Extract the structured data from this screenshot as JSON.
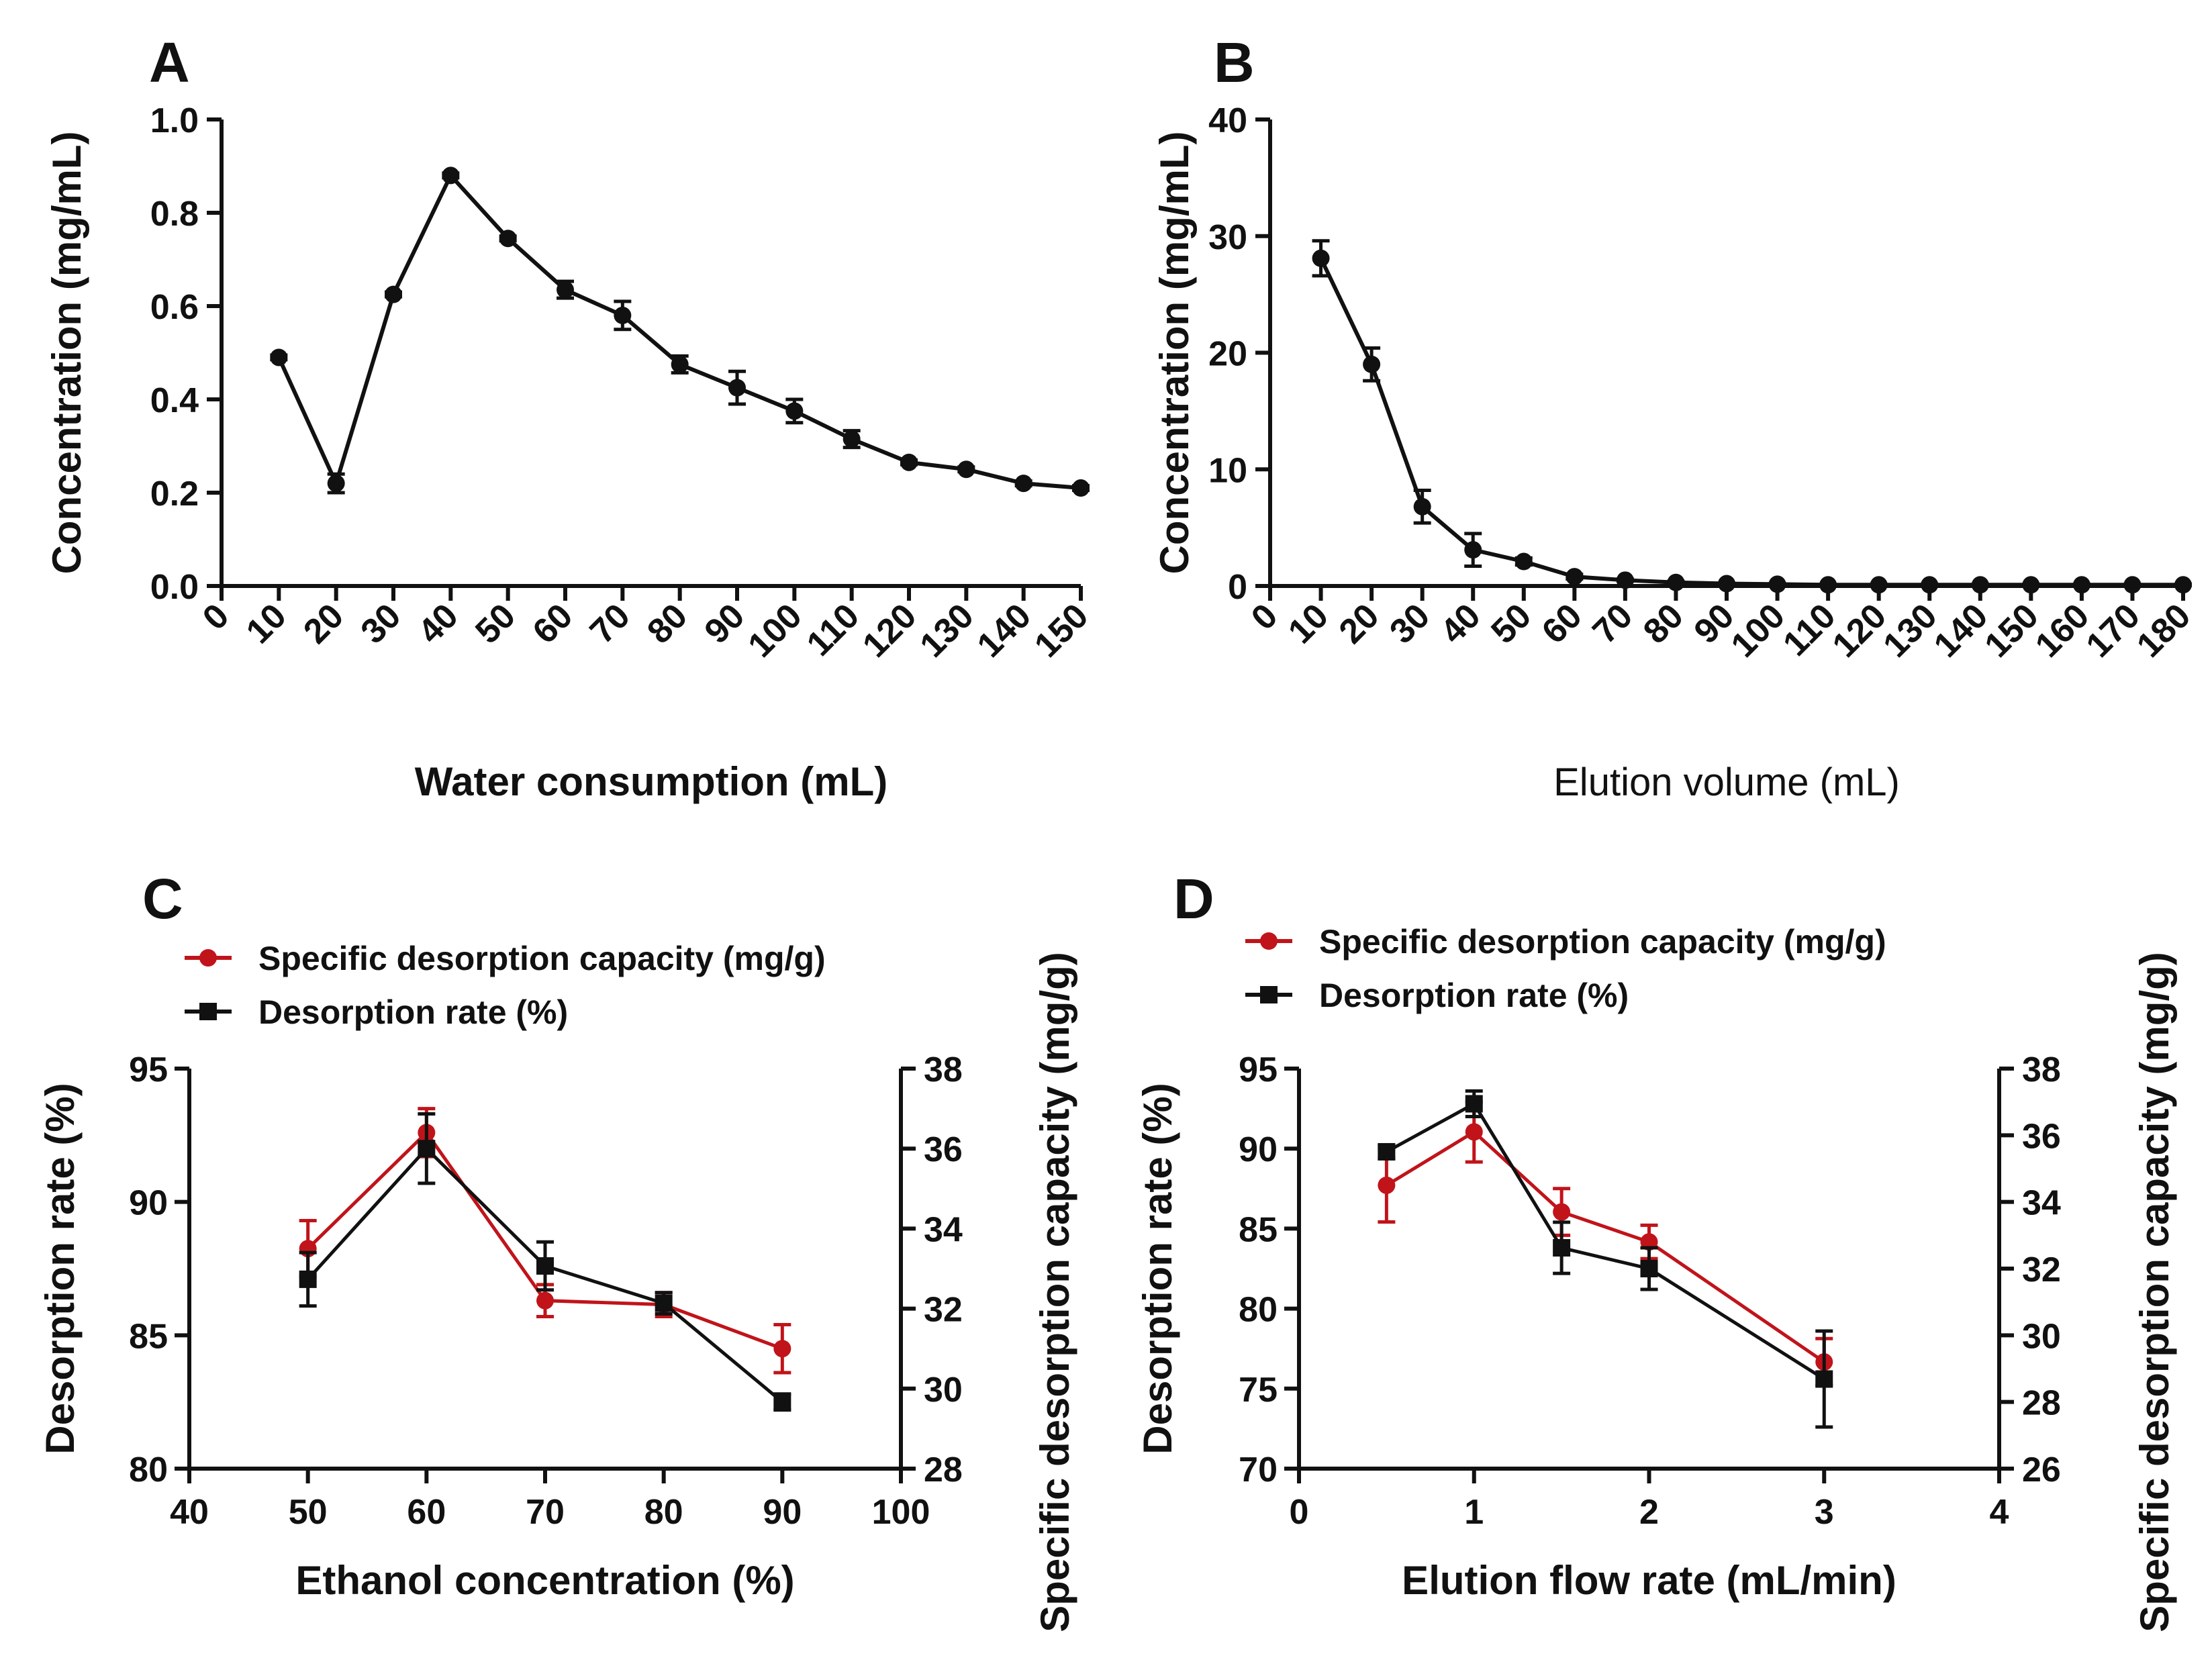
{
  "chart_data": [
    {
      "panel": "A",
      "type": "line",
      "xlabel": "Water consumption (mL)",
      "ylabel": "Concentration (mg/mL)",
      "x_ticks": [
        "0",
        "10",
        "20",
        "30",
        "40",
        "50",
        "60",
        "70",
        "80",
        "90",
        "100",
        "110",
        "120",
        "130",
        "140",
        "150"
      ],
      "y_ticks": [
        "0.0",
        "0.2",
        "0.4",
        "0.6",
        "0.8",
        "1.0"
      ],
      "ylim": [
        0,
        1.0
      ],
      "series": [
        {
          "name": "Concentration",
          "color": "#111111",
          "marker": "circle",
          "x": [
            10,
            20,
            30,
            40,
            50,
            60,
            70,
            80,
            90,
            100,
            110,
            120,
            130,
            140,
            150
          ],
          "values": [
            0.49,
            0.22,
            0.625,
            0.88,
            0.745,
            0.635,
            0.58,
            0.475,
            0.425,
            0.375,
            0.315,
            0.265,
            0.25,
            0.22,
            0.21
          ],
          "errors": [
            0.005,
            0.02,
            0.005,
            0.005,
            0.005,
            0.018,
            0.03,
            0.018,
            0.035,
            0.025,
            0.018,
            0.005,
            0.005,
            0.005,
            0.005
          ]
        }
      ]
    },
    {
      "panel": "B",
      "type": "line",
      "xlabel": "Elution volume (mL)",
      "ylabel": "Concentration (mg/mL)",
      "x_ticks": [
        "0",
        "10",
        "20",
        "30",
        "40",
        "50",
        "60",
        "70",
        "80",
        "90",
        "100",
        "110",
        "120",
        "130",
        "140",
        "150",
        "160",
        "170",
        "180"
      ],
      "y_ticks": [
        "0",
        "10",
        "20",
        "30",
        "40"
      ],
      "ylim": [
        0,
        40
      ],
      "series": [
        {
          "name": "Concentration",
          "color": "#111111",
          "marker": "circle",
          "x": [
            10,
            20,
            30,
            40,
            50,
            60,
            70,
            80,
            90,
            100,
            110,
            120,
            130,
            140,
            150,
            160,
            170,
            180
          ],
          "values": [
            28.1,
            19.0,
            6.8,
            3.1,
            2.1,
            0.8,
            0.5,
            0.3,
            0.2,
            0.15,
            0.1,
            0.1,
            0.1,
            0.1,
            0.1,
            0.1,
            0.1,
            0.1
          ],
          "errors": [
            1.5,
            1.4,
            1.4,
            1.4,
            0.3,
            0.2,
            0.1,
            0.1,
            0.05,
            0.05,
            0.05,
            0.05,
            0.05,
            0.05,
            0.05,
            0.05,
            0.05,
            0.05
          ]
        }
      ]
    },
    {
      "panel": "C",
      "type": "line",
      "xlabel": "Ethanol concentration (%)",
      "ylabel": "Desorption rate (%)",
      "y2label": "Specific desorption capacity (mg/g)",
      "x_ticks": [
        "40",
        "50",
        "60",
        "70",
        "80",
        "90",
        "100"
      ],
      "y_ticks": [
        "80",
        "85",
        "90",
        "95"
      ],
      "y2_ticks": [
        "28",
        "30",
        "32",
        "34",
        "36",
        "38"
      ],
      "xlim": [
        40,
        100
      ],
      "ylim": [
        80,
        95
      ],
      "y2lim": [
        28,
        38
      ],
      "legend": [
        "Specific desorption capacity (mg/g)",
        "Desorption rate (%)"
      ],
      "series": [
        {
          "name": "Specific desorption capacity (mg/g)",
          "axis": "right",
          "color": "#c0141a",
          "marker": "circle",
          "x": [
            50,
            60,
            70,
            80,
            90
          ],
          "values": [
            33.5,
            36.4,
            32.2,
            32.1,
            31.0
          ],
          "errors": [
            0.7,
            0.6,
            0.4,
            0.3,
            0.6
          ]
        },
        {
          "name": "Desorption rate (%)",
          "axis": "left",
          "color": "#111111",
          "marker": "square",
          "x": [
            50,
            60,
            70,
            80,
            90
          ],
          "values": [
            87.1,
            92.0,
            87.6,
            86.2,
            82.5
          ],
          "errors": [
            1.0,
            1.3,
            0.9,
            0.4,
            0.3
          ]
        }
      ]
    },
    {
      "panel": "D",
      "type": "line",
      "xlabel": "Elution flow rate (mL/min)",
      "ylabel": "Desorption rate (%)",
      "y2label": "Specific desorption capacity (mg/g)",
      "x_ticks": [
        "0",
        "1",
        "2",
        "3",
        "4"
      ],
      "y_ticks": [
        "70",
        "75",
        "80",
        "85",
        "90",
        "95"
      ],
      "y2_ticks": [
        "26",
        "28",
        "30",
        "32",
        "34",
        "36",
        "38"
      ],
      "xlim": [
        0,
        4
      ],
      "ylim": [
        70,
        95
      ],
      "y2lim": [
        26,
        38
      ],
      "legend": [
        "Specific desorption capacity (mg/g)",
        "Desorption rate (%)"
      ],
      "series": [
        {
          "name": "Specific desorption capacity (mg/g)",
          "axis": "right",
          "color": "#c0141a",
          "marker": "circle",
          "x": [
            0.5,
            1,
            1.5,
            2,
            3
          ],
          "values": [
            34.5,
            36.1,
            33.7,
            32.8,
            29.2
          ],
          "errors": [
            1.1,
            0.9,
            0.7,
            0.5,
            0.7
          ]
        },
        {
          "name": "Desorption rate (%)",
          "axis": "left",
          "color": "#111111",
          "marker": "square",
          "x": [
            0.5,
            1,
            1.5,
            2,
            3
          ],
          "values": [
            89.8,
            92.8,
            83.8,
            82.5,
            75.6
          ],
          "errors": [
            0.4,
            0.8,
            1.6,
            1.3,
            3.0
          ]
        }
      ]
    }
  ]
}
